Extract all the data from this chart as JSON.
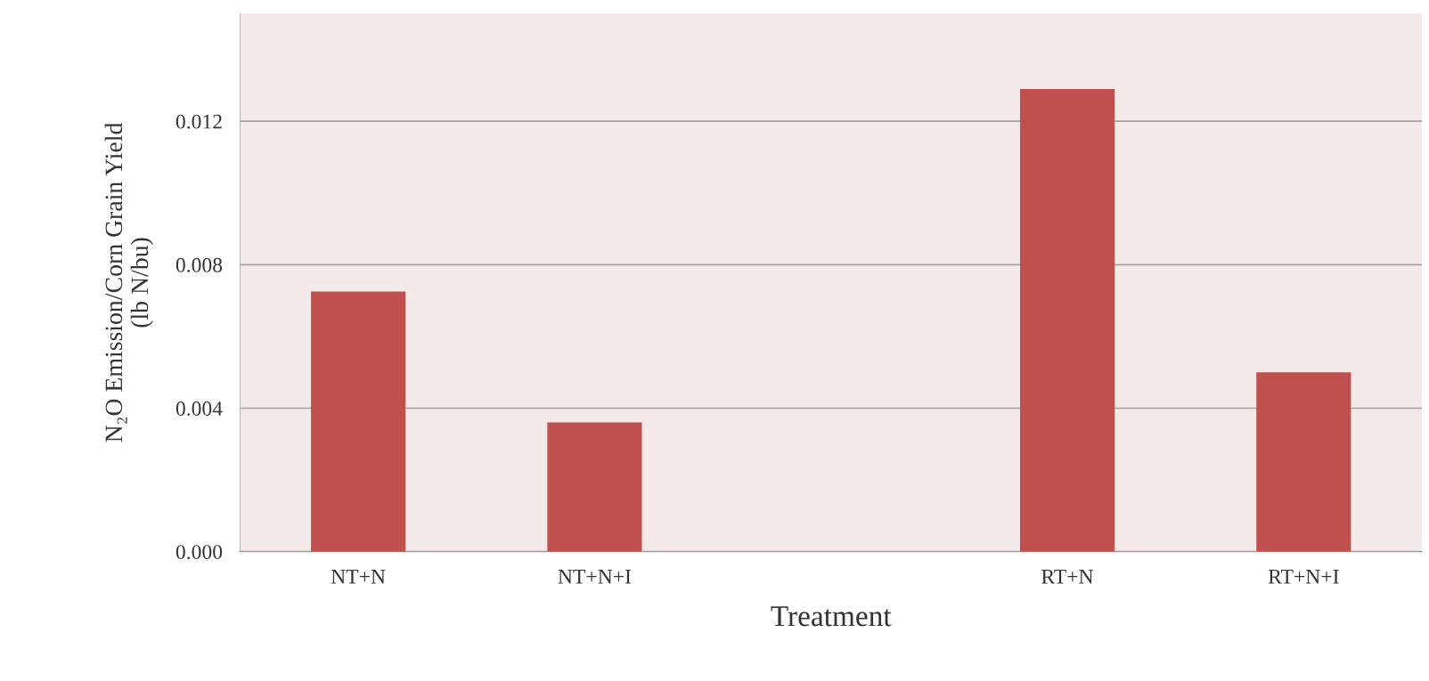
{
  "chart_data": {
    "type": "bar",
    "xlabel": "Treatment",
    "ylabel": "N₂O Emission/Corn Grain Yield\n(lb N/bu)",
    "categories": [
      "NT+N",
      "NT+N+I",
      null,
      "RT+N",
      "RT+N+I"
    ],
    "values": [
      0.00725,
      0.0036,
      null,
      0.0129,
      0.005
    ],
    "color": "#c0504d",
    "ylim": [
      0,
      0.015
    ],
    "yticks": [
      {
        "value": 0,
        "label": "0.000"
      },
      {
        "value": 0.004,
        "label": "0.004"
      },
      {
        "value": 0.008,
        "label": "0.008"
      },
      {
        "value": 0.012,
        "label": "0.012"
      }
    ],
    "grid": "y"
  }
}
